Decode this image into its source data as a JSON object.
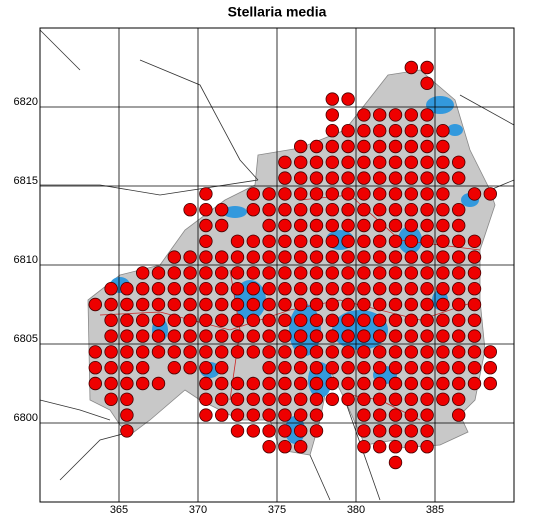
{
  "chart_data": {
    "type": "dotmap",
    "title": "Stellaria media",
    "color": "#ee0000",
    "xlim": [
      360,
      390
    ],
    "ylim": [
      6795,
      6825
    ],
    "xticks": [
      365,
      370,
      375,
      380,
      385
    ],
    "yticks": [
      6800,
      6805,
      6810,
      6815,
      6820
    ],
    "grid": true,
    "rows": [
      {
        "y": 6822.5,
        "x": [
          383.5,
          384.5
        ]
      },
      {
        "y": 6821.5,
        "x": [
          384.5
        ]
      },
      {
        "y": 6820.5,
        "x": [
          378.5,
          379.5
        ]
      },
      {
        "y": 6819.5,
        "x": [
          378.5,
          380.5,
          381.5,
          382.5,
          383.5,
          384.5
        ]
      },
      {
        "y": 6818.5,
        "x": [
          378.5,
          379.5,
          380.5,
          381.5,
          382.5,
          383.5,
          384.5,
          385.5
        ]
      },
      {
        "y": 6817.5,
        "x": [
          376.5,
          377.5,
          378.5,
          379.5,
          380.5,
          381.5,
          382.5,
          383.5,
          384.5,
          385.5
        ]
      },
      {
        "y": 6816.5,
        "x": [
          375.5,
          376.5,
          377.5,
          378.5,
          379.5,
          380.5,
          381.5,
          382.5,
          383.5,
          384.5,
          385.5,
          386.5
        ]
      },
      {
        "y": 6815.5,
        "x": [
          375.5,
          376.5,
          377.5,
          378.5,
          379.5,
          380.5,
          381.5,
          382.5,
          383.5,
          384.5,
          385.5,
          386.5
        ]
      },
      {
        "y": 6814.5,
        "x": [
          370.5,
          373.5,
          374.5,
          375.5,
          376.5,
          377.5,
          378.5,
          379.5,
          380.5,
          381.5,
          382.5,
          383.5,
          384.5,
          385.5,
          387.5,
          388.5
        ]
      },
      {
        "y": 6813.5,
        "x": [
          369.5,
          370.5,
          371.5,
          373.5,
          374.5,
          375.5,
          376.5,
          377.5,
          378.5,
          379.5,
          380.5,
          381.5,
          382.5,
          383.5,
          384.5,
          385.5,
          386.5
        ]
      },
      {
        "y": 6812.5,
        "x": [
          370.5,
          371.5,
          374.5,
          375.5,
          376.5,
          377.5,
          378.5,
          379.5,
          380.5,
          381.5,
          382.5,
          383.5,
          384.5,
          385.5,
          386.5
        ]
      },
      {
        "y": 6811.5,
        "x": [
          370.5,
          372.5,
          373.5,
          374.5,
          375.5,
          376.5,
          377.5,
          378.5,
          379.5,
          380.5,
          381.5,
          382.5,
          383.5,
          384.5,
          385.5,
          386.5,
          387.5
        ]
      },
      {
        "y": 6810.5,
        "x": [
          368.5,
          369.5,
          370.5,
          371.5,
          372.5,
          373.5,
          374.5,
          375.5,
          376.5,
          377.5,
          378.5,
          379.5,
          380.5,
          381.5,
          382.5,
          383.5,
          384.5,
          385.5,
          386.5,
          387.5
        ]
      },
      {
        "y": 6809.5,
        "x": [
          366.5,
          367.5,
          368.5,
          369.5,
          370.5,
          371.5,
          372.5,
          373.5,
          374.5,
          375.5,
          376.5,
          377.5,
          378.5,
          379.5,
          380.5,
          381.5,
          382.5,
          383.5,
          384.5,
          385.5,
          386.5,
          387.5
        ]
      },
      {
        "y": 6808.5,
        "x": [
          364.5,
          365.5,
          366.5,
          367.5,
          368.5,
          369.5,
          370.5,
          371.5,
          372.5,
          373.5,
          374.5,
          375.5,
          376.5,
          377.5,
          378.5,
          379.5,
          380.5,
          381.5,
          382.5,
          383.5,
          384.5,
          385.5,
          386.5,
          387.5
        ]
      },
      {
        "y": 6807.5,
        "x": [
          363.5,
          364.5,
          365.5,
          366.5,
          367.5,
          368.5,
          369.5,
          370.5,
          371.5,
          372.5,
          373.5,
          374.5,
          375.5,
          376.5,
          377.5,
          378.5,
          379.5,
          380.5,
          381.5,
          382.5,
          383.5,
          384.5,
          385.5,
          386.5,
          387.5
        ]
      },
      {
        "y": 6806.5,
        "x": [
          364.5,
          365.5,
          366.5,
          367.5,
          368.5,
          369.5,
          370.5,
          371.5,
          372.5,
          373.5,
          374.5,
          375.5,
          376.5,
          377.5,
          378.5,
          379.5,
          380.5,
          381.5,
          382.5,
          383.5,
          384.5,
          385.5,
          386.5,
          387.5
        ]
      },
      {
        "y": 6805.5,
        "x": [
          364.5,
          365.5,
          366.5,
          367.5,
          368.5,
          369.5,
          370.5,
          371.5,
          372.5,
          373.5,
          374.5,
          375.5,
          376.5,
          377.5,
          378.5,
          379.5,
          380.5,
          381.5,
          382.5,
          383.5,
          384.5,
          385.5,
          386.5,
          387.5
        ]
      },
      {
        "y": 6804.5,
        "x": [
          363.5,
          364.5,
          365.5,
          366.5,
          367.5,
          368.5,
          369.5,
          370.5,
          371.5,
          372.5,
          373.5,
          374.5,
          375.5,
          376.5,
          377.5,
          378.5,
          379.5,
          380.5,
          381.5,
          382.5,
          383.5,
          384.5,
          385.5,
          386.5,
          387.5,
          388.5
        ]
      },
      {
        "y": 6803.5,
        "x": [
          363.5,
          364.5,
          365.5,
          366.5,
          368.5,
          369.5,
          370.5,
          371.5,
          374.5,
          375.5,
          376.5,
          377.5,
          378.5,
          379.5,
          380.5,
          381.5,
          382.5,
          383.5,
          384.5,
          385.5,
          386.5,
          387.5,
          388.5
        ]
      },
      {
        "y": 6802.5,
        "x": [
          363.5,
          364.5,
          365.5,
          366.5,
          367.5,
          370.5,
          371.5,
          372.5,
          373.5,
          374.5,
          375.5,
          376.5,
          377.5,
          378.5,
          379.5,
          380.5,
          381.5,
          382.5,
          383.5,
          384.5,
          385.5,
          386.5,
          387.5,
          388.5
        ]
      },
      {
        "y": 6801.5,
        "x": [
          364.5,
          365.5,
          370.5,
          371.5,
          372.5,
          373.5,
          374.5,
          375.5,
          376.5,
          377.5,
          378.5,
          379.5,
          380.5,
          381.5,
          382.5,
          383.5,
          384.5,
          385.5,
          386.5
        ]
      },
      {
        "y": 6800.5,
        "x": [
          365.5,
          370.5,
          371.5,
          372.5,
          373.5,
          374.5,
          375.5,
          376.5,
          377.5,
          380.5,
          381.5,
          382.5,
          383.5,
          384.5,
          386.5
        ]
      },
      {
        "y": 6799.5,
        "x": [
          365.5,
          372.5,
          373.5,
          374.5,
          375.5,
          376.5,
          377.5,
          380.5,
          381.5,
          382.5,
          383.5,
          384.5
        ]
      },
      {
        "y": 6798.5,
        "x": [
          374.5,
          375.5,
          376.5,
          380.5,
          381.5,
          382.5,
          383.5,
          384.5
        ]
      },
      {
        "y": 6797.5,
        "x": [
          382.5
        ]
      }
    ]
  }
}
